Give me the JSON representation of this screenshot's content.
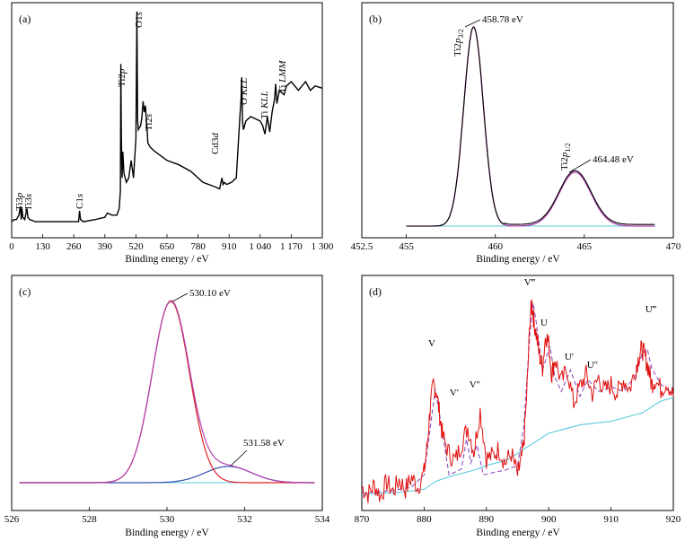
{
  "colors": {
    "survey": "#000000",
    "envelope": "#000000",
    "fit_magenta": "#b040b0",
    "background_cyan": "#5bc8dc",
    "fit_red": "#e02020",
    "fit_blue": "#3050b0",
    "raw_red": "#e01010",
    "dashed_purple": "#9050c0"
  },
  "chart_data": [
    {
      "type": "line",
      "panel_label": "(a)",
      "xlabel": "Binding energy / eV",
      "ylabel": "",
      "xlim": [
        0,
        1300
      ],
      "x_ticks": [
        "0",
        "130",
        "260",
        "390",
        "520",
        "650",
        "780",
        "910",
        "1 040",
        "1 170",
        "1 300"
      ],
      "grid": false,
      "series": [
        {
          "x": [
            0,
            10,
            20,
            30,
            37,
            40,
            43,
            47,
            55,
            60,
            64,
            68,
            75,
            100,
            150,
            200,
            250,
            280,
            284,
            288,
            300,
            350,
            390,
            400,
            420,
            440,
            450,
            455,
            457,
            459,
            462,
            465,
            470,
            480,
            490,
            500,
            510,
            520,
            524,
            527,
            530,
            535,
            540,
            545,
            550,
            555,
            560,
            564,
            567,
            570,
            580,
            600,
            650,
            700,
            750,
            800,
            850,
            870,
            880,
            885,
            890,
            900,
            920,
            940,
            955,
            960,
            963,
            966,
            970,
            980,
            1000,
            1040,
            1050,
            1060,
            1070,
            1080,
            1090,
            1100,
            1105,
            1110,
            1120,
            1140,
            1150,
            1170,
            1200,
            1230,
            1250,
            1270,
            1300
          ],
          "y": [
            2,
            3,
            3,
            5,
            9,
            3,
            8,
            4,
            3,
            6,
            8,
            4,
            3,
            2,
            2,
            2,
            2,
            2,
            7,
            3,
            2,
            3,
            4,
            6,
            5,
            5,
            8,
            16,
            74,
            40,
            22,
            34,
            24,
            20,
            22,
            30,
            22,
            40,
            98,
            48,
            44,
            45,
            46,
            50,
            57,
            52,
            55,
            48,
            44,
            38,
            36,
            34,
            30,
            28,
            25,
            20,
            18,
            17,
            22,
            19,
            20,
            19,
            20,
            22,
            50,
            58,
            68,
            48,
            44,
            48,
            50,
            48,
            46,
            42,
            50,
            43,
            52,
            58,
            65,
            56,
            62,
            60,
            64,
            66,
            62,
            66,
            62,
            64,
            63
          ]
        }
      ],
      "peak_labels": [
        "Ti3p",
        "Ti3s",
        "C1s",
        "Ti2p",
        "O1s",
        "Ti2s",
        "Cd3d",
        "O KLL",
        "Ti KLL",
        "Ti LMM"
      ]
    },
    {
      "type": "line",
      "panel_label": "(b)",
      "xlabel": "Binding energy / eV",
      "xlim": [
        452.5,
        470
      ],
      "x_ticks": [
        "452.5",
        "455",
        "460",
        "465",
        "470"
      ],
      "grid": false,
      "peaks": [
        {
          "label": "Ti2p3/2",
          "x": 458.78,
          "value_label": "458.78 eV",
          "height": 100,
          "sigma": 0.55
        },
        {
          "label": "Ti2p1/2",
          "x": 464.48,
          "value_label": "464.48 eV",
          "height": 27,
          "sigma": 0.9
        }
      ],
      "series": [
        {
          "name": "",
          "role": "envelope"
        },
        {
          "name": "",
          "role": "fit"
        },
        {
          "name": "",
          "role": "background",
          "y": 0
        }
      ]
    },
    {
      "type": "line",
      "panel_label": "(c)",
      "xlabel": "Binding energy / eV",
      "xlim": [
        526,
        534
      ],
      "x_ticks": [
        "526",
        "528",
        "530",
        "532",
        "534"
      ],
      "grid": false,
      "peaks": [
        {
          "x": 530.1,
          "value_label": "530.10 eV",
          "height": 100,
          "sigma": 0.48
        },
        {
          "x": 531.58,
          "value_label": "531.58 eV",
          "height": 9,
          "sigma": 0.6
        }
      ],
      "series": [
        {
          "name": "",
          "role": "envelope"
        },
        {
          "name": "",
          "role": "component-1"
        },
        {
          "name": "",
          "role": "component-2"
        },
        {
          "name": "",
          "role": "background",
          "y": 0
        }
      ]
    },
    {
      "type": "line",
      "panel_label": "(d)",
      "xlabel": "Binding energy / eV",
      "xlim": [
        870,
        920
      ],
      "x_ticks": [
        "870",
        "880",
        "890",
        "900",
        "910",
        "920"
      ],
      "grid": false,
      "peak_labels": [
        {
          "label": "V",
          "x": 881.8
        },
        {
          "label": "V′",
          "x": 886.5
        },
        {
          "label": "V″",
          "x": 888.5
        },
        {
          "label": "V‴",
          "x": 897.5
        },
        {
          "label": "U",
          "x": 900.2
        },
        {
          "label": "U′",
          "x": 903.5
        },
        {
          "label": "U″",
          "x": 906.3
        },
        {
          "label": "U‴",
          "x": 915.8
        }
      ],
      "background": {
        "x": [
          870,
          873,
          875,
          877,
          880,
          882,
          885,
          888,
          890,
          893,
          895,
          897,
          900,
          905,
          910,
          915,
          918,
          920
        ],
        "y": [
          3,
          5,
          5,
          6,
          8,
          15,
          20,
          24,
          28,
          32,
          38,
          45,
          55,
          62,
          65,
          72,
          82,
          85
        ]
      },
      "raw": {
        "x": [
          870,
          871,
          872,
          873,
          874,
          875,
          876,
          877,
          878,
          879,
          880,
          880.5,
          881,
          881.5,
          882,
          882.5,
          883,
          884,
          885,
          886,
          887,
          888,
          889,
          890,
          891,
          892,
          893,
          894,
          895,
          895.5,
          896,
          896.5,
          897,
          897.3,
          897.6,
          898,
          898.5,
          899,
          899.5,
          900,
          900.5,
          901,
          902,
          903,
          904,
          905,
          906,
          907,
          908,
          909,
          910,
          911,
          912,
          913,
          914,
          914.5,
          915,
          915.5,
          916,
          916.5,
          917,
          918,
          919,
          920
        ],
        "y": [
          10,
          4,
          12,
          2,
          14,
          6,
          16,
          8,
          18,
          10,
          22,
          45,
          78,
          96,
          90,
          70,
          52,
          38,
          32,
          46,
          60,
          40,
          74,
          34,
          36,
          42,
          30,
          38,
          20,
          30,
          46,
          90,
          150,
          164,
          150,
          138,
          120,
          110,
          138,
          130,
          104,
          118,
          98,
          108,
          80,
          94,
          104,
          88,
          102,
          90,
          96,
          88,
          100,
          92,
          110,
          120,
          126,
          118,
          110,
          96,
          100,
          92,
          98,
          86
        ]
      },
      "fit_dashed": {
        "x": [
          870,
          875,
          878,
          880,
          881,
          881.8,
          882.5,
          884,
          886,
          886.8,
          887.5,
          888.5,
          889.5,
          891,
          893,
          895,
          896,
          897,
          897.5,
          898,
          899,
          900.2,
          901,
          902,
          903.5,
          905,
          906.3,
          908,
          910,
          912,
          914,
          915,
          915.8,
          916.5,
          918,
          920
        ],
        "y": [
          5,
          7,
          10,
          20,
          60,
          92,
          70,
          20,
          25,
          50,
          30,
          45,
          20,
          22,
          24,
          28,
          60,
          140,
          164,
          148,
          108,
          128,
          102,
          90,
          108,
          86,
          100,
          90,
          94,
          90,
          104,
          122,
          126,
          110,
          96,
          88
        ]
      }
    }
  ]
}
